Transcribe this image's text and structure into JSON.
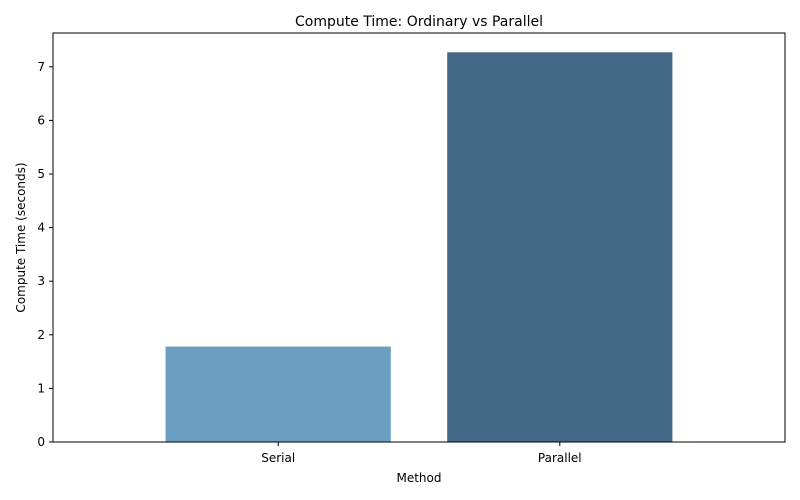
{
  "chart_data": {
    "type": "bar",
    "title": "Compute Time: Ordinary vs Parallel",
    "xlabel": "Method",
    "ylabel": "Compute Time (seconds)",
    "categories": [
      "Serial",
      "Parallel"
    ],
    "values": [
      1.78,
      7.27
    ],
    "colors": [
      "#6a9fc1",
      "#426a87"
    ],
    "ylim": [
      0,
      7.63
    ],
    "yticks": [
      0,
      1,
      2,
      3,
      4,
      5,
      6,
      7
    ],
    "grid": false,
    "legend": "none"
  }
}
